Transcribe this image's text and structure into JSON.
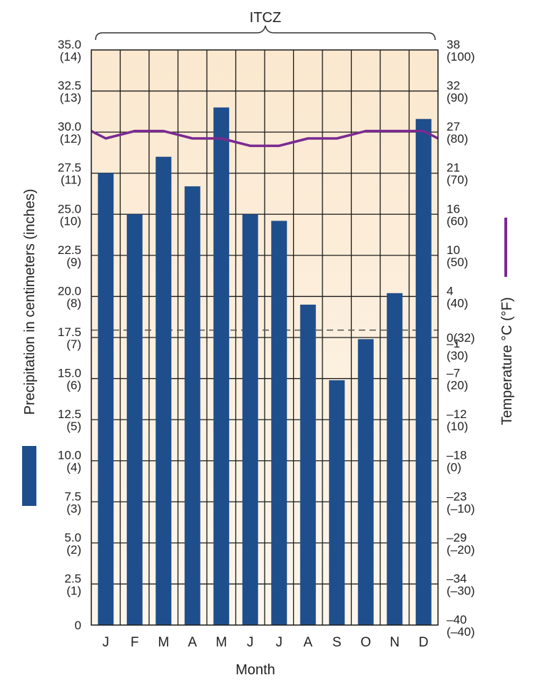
{
  "chart_data": {
    "type": "bar",
    "annotation": "ITCZ",
    "xlabel": "Month",
    "ylabel": "Precipitation in centimeters (inches)",
    "y2label": "Temperature °C (°F)",
    "categories": [
      "J",
      "F",
      "M",
      "A",
      "M",
      "J",
      "J",
      "A",
      "S",
      "O",
      "N",
      "D"
    ],
    "ylim": [
      0,
      35
    ],
    "y_ticks": [
      {
        "v": 35.0,
        "a": "35.0",
        "b": "(14)"
      },
      {
        "v": 32.5,
        "a": "32.5",
        "b": "(13)"
      },
      {
        "v": 30.0,
        "a": "30.0",
        "b": "(12)"
      },
      {
        "v": 27.5,
        "a": "27.5",
        "b": "(11)"
      },
      {
        "v": 25.0,
        "a": "25.0",
        "b": "(10)"
      },
      {
        "v": 22.5,
        "a": "22.5",
        "b": "(9)"
      },
      {
        "v": 20.0,
        "a": "20.0",
        "b": "(8)"
      },
      {
        "v": 17.5,
        "a": "17.5",
        "b": "(7)"
      },
      {
        "v": 15.0,
        "a": "15.0",
        "b": "(6)"
      },
      {
        "v": 12.5,
        "a": "12.5",
        "b": "(5)"
      },
      {
        "v": 10.0,
        "a": "10.0",
        "b": "(4)"
      },
      {
        "v": 7.5,
        "a": "7.5",
        "b": "(3)"
      },
      {
        "v": 5.0,
        "a": "5.0",
        "b": "(2)"
      },
      {
        "v": 2.5,
        "a": "2.5",
        "b": "(1)"
      },
      {
        "v": 0,
        "a": "0",
        "b": ""
      }
    ],
    "y2lim": [
      -40,
      38
    ],
    "y2_ticks": [
      {
        "pos": 35.0,
        "a": "38",
        "b": "(100)"
      },
      {
        "pos": 32.5,
        "a": "32",
        "b": "(90)"
      },
      {
        "pos": 30.0,
        "a": "27",
        "b": "(80)"
      },
      {
        "pos": 27.5,
        "a": "21",
        "b": "(70)"
      },
      {
        "pos": 25.0,
        "a": "16",
        "b": "(60)"
      },
      {
        "pos": 22.5,
        "a": "10",
        "b": "(50)"
      },
      {
        "pos": 20.0,
        "a": "4",
        "b": "(40)"
      },
      {
        "pos": 17.5,
        "a": "0(32)",
        "b": ""
      },
      {
        "pos": 16.8,
        "a": "–1",
        "b": "(30)"
      },
      {
        "pos": 15.0,
        "a": "–7",
        "b": "(20)"
      },
      {
        "pos": 12.5,
        "a": "–12",
        "b": "(10)"
      },
      {
        "pos": 10.0,
        "a": "–18",
        "b": "(0)"
      },
      {
        "pos": 7.5,
        "a": "–23",
        "b": "(–10)"
      },
      {
        "pos": 5.0,
        "a": "–29",
        "b": "(–20)"
      },
      {
        "pos": 2.5,
        "a": "–34",
        "b": "(–30)"
      },
      {
        "pos": 0,
        "a": "–40",
        "b": "(–40)"
      }
    ],
    "freezing_line_c": 0,
    "series": [
      {
        "kind": "bar",
        "axis": "left",
        "color": "#1f4e8c",
        "values": [
          27.5,
          25.0,
          28.5,
          26.7,
          31.5,
          25.0,
          24.6,
          19.5,
          14.9,
          17.4,
          20.2,
          30.8
        ]
      },
      {
        "kind": "line",
        "axis": "right",
        "color": "#7a2a92",
        "values": [
          26,
          27,
          27,
          26,
          26,
          25,
          25,
          26,
          26,
          27,
          27,
          27
        ],
        "start_value": 27,
        "end_value": 26
      }
    ],
    "colors": {
      "background": "#fdf0dc",
      "grid": "#1a1a1a",
      "bar": "#1f4e8c",
      "temperature_line": "#7a2a92"
    }
  }
}
